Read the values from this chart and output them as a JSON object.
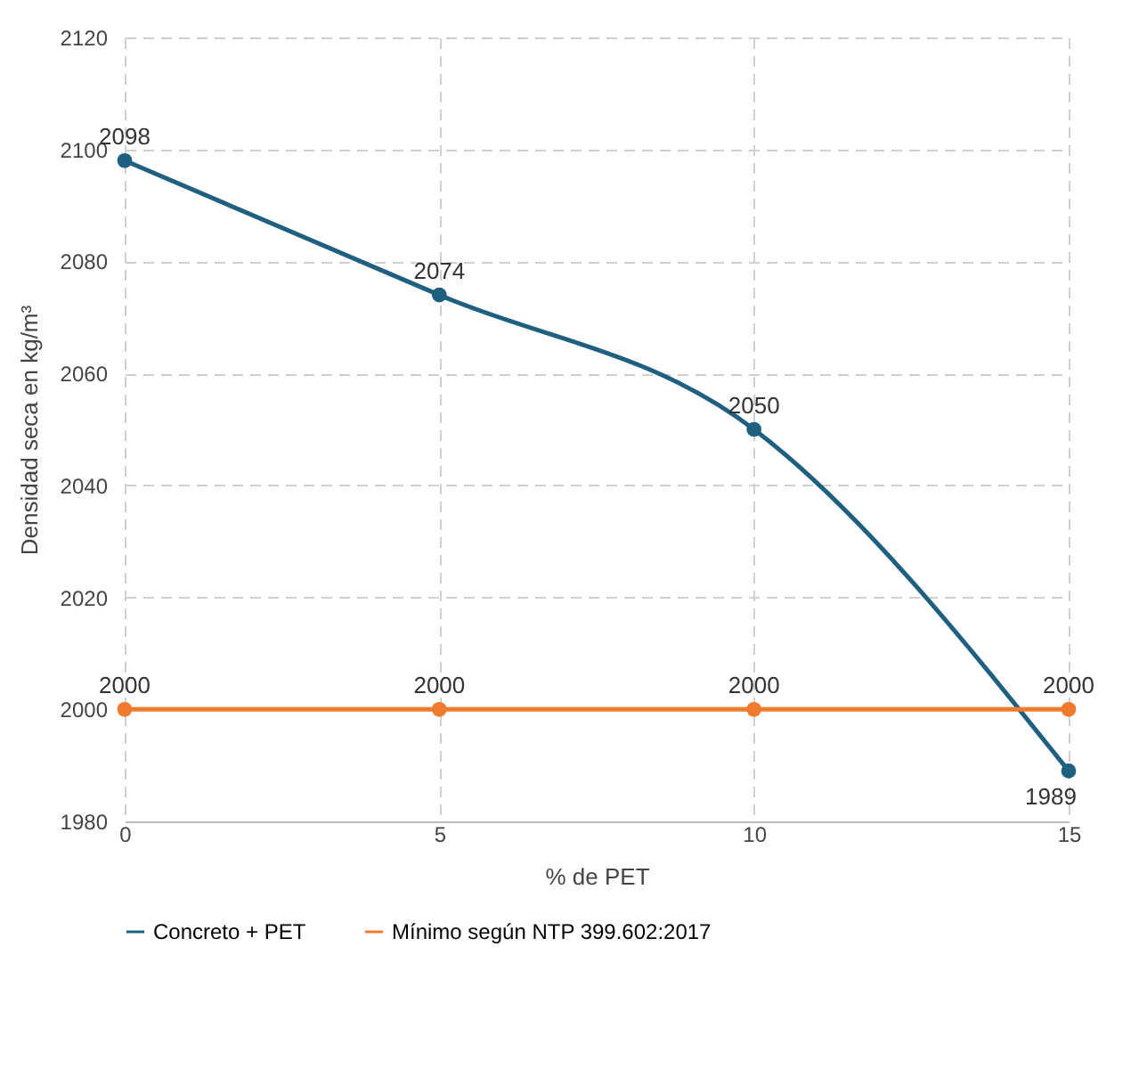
{
  "chart_data": {
    "type": "line",
    "xlabel": "% de PET",
    "ylabel": "Densidad seca en kg/m³",
    "x": [
      0,
      5,
      10,
      15
    ],
    "series": [
      {
        "name": "Concreto + PET",
        "color": "#1f5f7f",
        "values": [
          2098,
          2074,
          2050,
          1989
        ]
      },
      {
        "name": "Mínimo según NTP 399.602:2017",
        "color": "#f07a2e",
        "values": [
          2000,
          2000,
          2000,
          2000
        ]
      }
    ],
    "xlim": [
      0,
      15
    ],
    "xticks": [
      0,
      5,
      10,
      15
    ],
    "ylim": [
      1980,
      2120
    ],
    "yticks": [
      1980,
      2000,
      2020,
      2040,
      2060,
      2080,
      2100,
      2120
    ],
    "grid": true,
    "legend": "bottom",
    "marker": "circle",
    "line_style": "solid",
    "data_labels": true
  }
}
